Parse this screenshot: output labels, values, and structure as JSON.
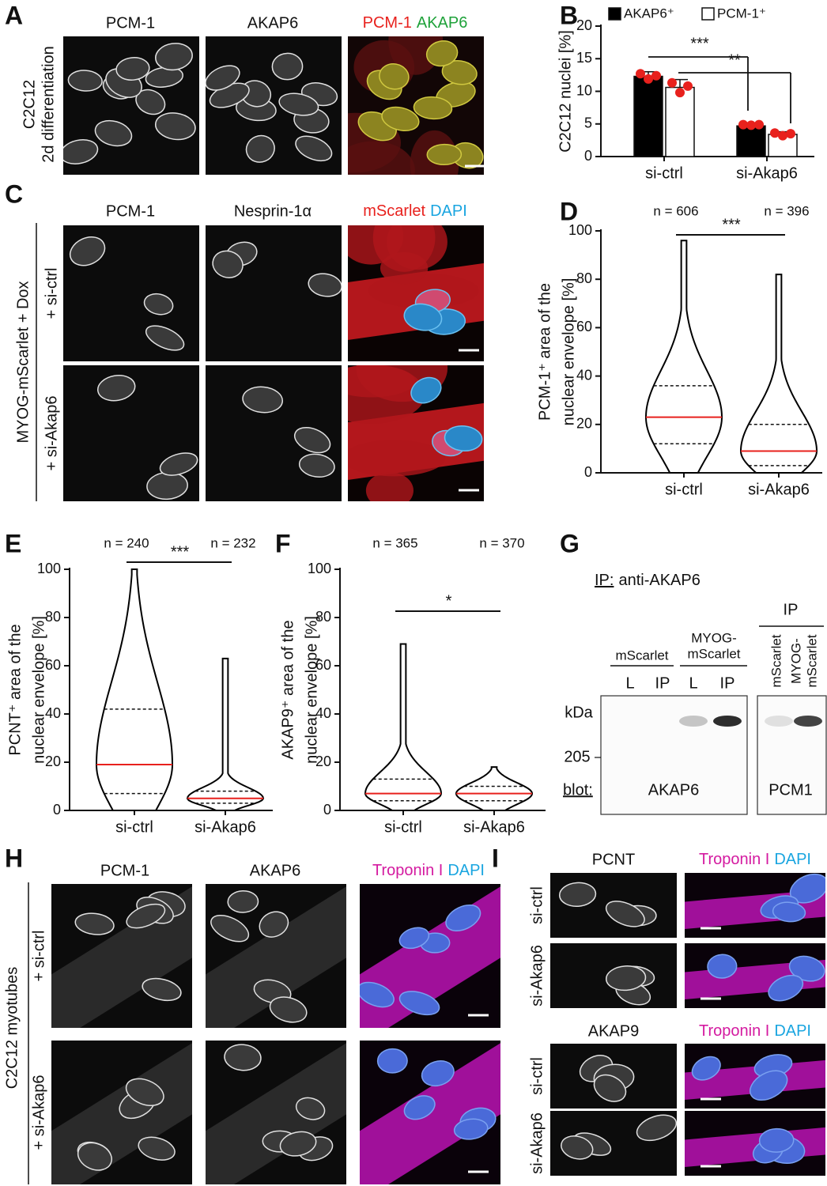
{
  "panels": {
    "letters": [
      "A",
      "B",
      "C",
      "D",
      "E",
      "F",
      "G",
      "H",
      "I"
    ],
    "A": {
      "columns": [
        "PCM-1",
        "AKAP6"
      ],
      "merge": [
        "PCM-1",
        "AKAP6"
      ],
      "side": [
        "C2C12",
        "2d differentiation"
      ]
    },
    "C": {
      "columns": [
        "PCM-1",
        "Nesprin-1α"
      ],
      "merge": [
        "mScarlet",
        "DAPI"
      ],
      "side": "MYOG-mScarlet + Dox",
      "rows": [
        "+ si-ctrl",
        "+ si-Akap6"
      ]
    },
    "G": {
      "ip_prefix": "IP:",
      "ip_target": "anti-AKAP6",
      "group_left": "mScarlet",
      "group_right": [
        "MYOG-",
        "mScarlet"
      ],
      "lanes": [
        "L",
        "IP",
        "L",
        "IP"
      ],
      "ip_header": "IP",
      "ip_lanes": [
        "mScarlet",
        "MYOG-",
        "mScarlet"
      ],
      "unit": "kDa",
      "marker": 205,
      "blot_prefix": "blot:",
      "blots": [
        "AKAP6",
        "PCM1"
      ]
    },
    "H": {
      "columns": [
        "PCM-1",
        "AKAP6"
      ],
      "merge": [
        "Troponin I",
        "DAPI"
      ],
      "side": "C2C12 myotubes",
      "rows": [
        "+ si-ctrl",
        "+ si-Akap6"
      ]
    },
    "I": {
      "markers": [
        "PCNT",
        "AKAP9"
      ],
      "merge": [
        "Troponin I",
        "DAPI"
      ],
      "rows": [
        "si-ctrl",
        "si-Akap6"
      ]
    }
  },
  "chart_data": [
    {
      "type": "bar",
      "ylabel": "C2C12 nuclei [%]",
      "categories": [
        "si-ctrl",
        "si-Akap6"
      ],
      "series": [
        {
          "name": "AKAP6⁺",
          "color": "#000000",
          "values": [
            12.3,
            4.7
          ],
          "errors": [
            0.7,
            0.2
          ],
          "points": [
            [
              12.7,
              11.9,
              12.4
            ],
            [
              4.9,
              4.8,
              4.9
            ]
          ]
        },
        {
          "name": "PCM-1⁺",
          "color": "#ffffff",
          "values": [
            10.6,
            3.4
          ],
          "errors": [
            1.2,
            0.4
          ],
          "points": [
            [
              11.3,
              9.8,
              10.8
            ],
            [
              3.6,
              3.2,
              3.5
            ]
          ]
        }
      ],
      "point_color": "#e8211d",
      "significance": [
        "***",
        "**"
      ],
      "ylim": [
        0,
        20
      ],
      "yticks": [
        0,
        5,
        10,
        15,
        20
      ]
    },
    {
      "type": "violin",
      "ylabel": [
        "PCM-1⁺ area of the",
        "nuclear envelope [%]"
      ],
      "categories": [
        "si-ctrl",
        "si-Akap6"
      ],
      "n_labels": [
        "n = 606",
        "n = 396"
      ],
      "significance": "***",
      "color": "#000000",
      "median_color": "#e8211d",
      "stats": [
        {
          "min": 0,
          "q1": 12,
          "median": 23,
          "q3": 36,
          "max": 96
        },
        {
          "min": 0,
          "q1": 3,
          "median": 9,
          "q3": 20,
          "max": 82
        }
      ],
      "ylim": [
        0,
        100
      ],
      "yticks": [
        0,
        20,
        40,
        60,
        80,
        100
      ]
    },
    {
      "type": "violin",
      "ylabel": [
        "PCNT⁺ area of the",
        "nuclear envelope [%]"
      ],
      "categories": [
        "si-ctrl",
        "si-Akap6"
      ],
      "n_labels": [
        "n = 240",
        "n = 232"
      ],
      "significance": "***",
      "color": "#000000",
      "median_color": "#e8211d",
      "stats": [
        {
          "min": 0,
          "q1": 7,
          "median": 19,
          "q3": 42,
          "max": 100
        },
        {
          "min": 0,
          "q1": 3,
          "median": 5,
          "q3": 8,
          "max": 63
        }
      ],
      "ylim": [
        0,
        100
      ],
      "yticks": [
        0,
        20,
        40,
        60,
        80,
        100
      ]
    },
    {
      "type": "violin",
      "ylabel": [
        "AKAP9⁺ area of the",
        "nuclear envelope [%]"
      ],
      "categories": [
        "si-ctrl",
        "si-Akap6"
      ],
      "n_labels": [
        "n = 365",
        "n = 370"
      ],
      "significance": "*",
      "color": "#000000",
      "median_color": "#e8211d",
      "stats": [
        {
          "min": 0,
          "q1": 4,
          "median": 7,
          "q3": 13,
          "max": 69
        },
        {
          "min": 0,
          "q1": 4,
          "median": 7,
          "q3": 10,
          "max": 18
        }
      ],
      "ylim": [
        0,
        100
      ],
      "yticks": [
        0,
        20,
        40,
        60,
        80,
        100
      ]
    }
  ]
}
